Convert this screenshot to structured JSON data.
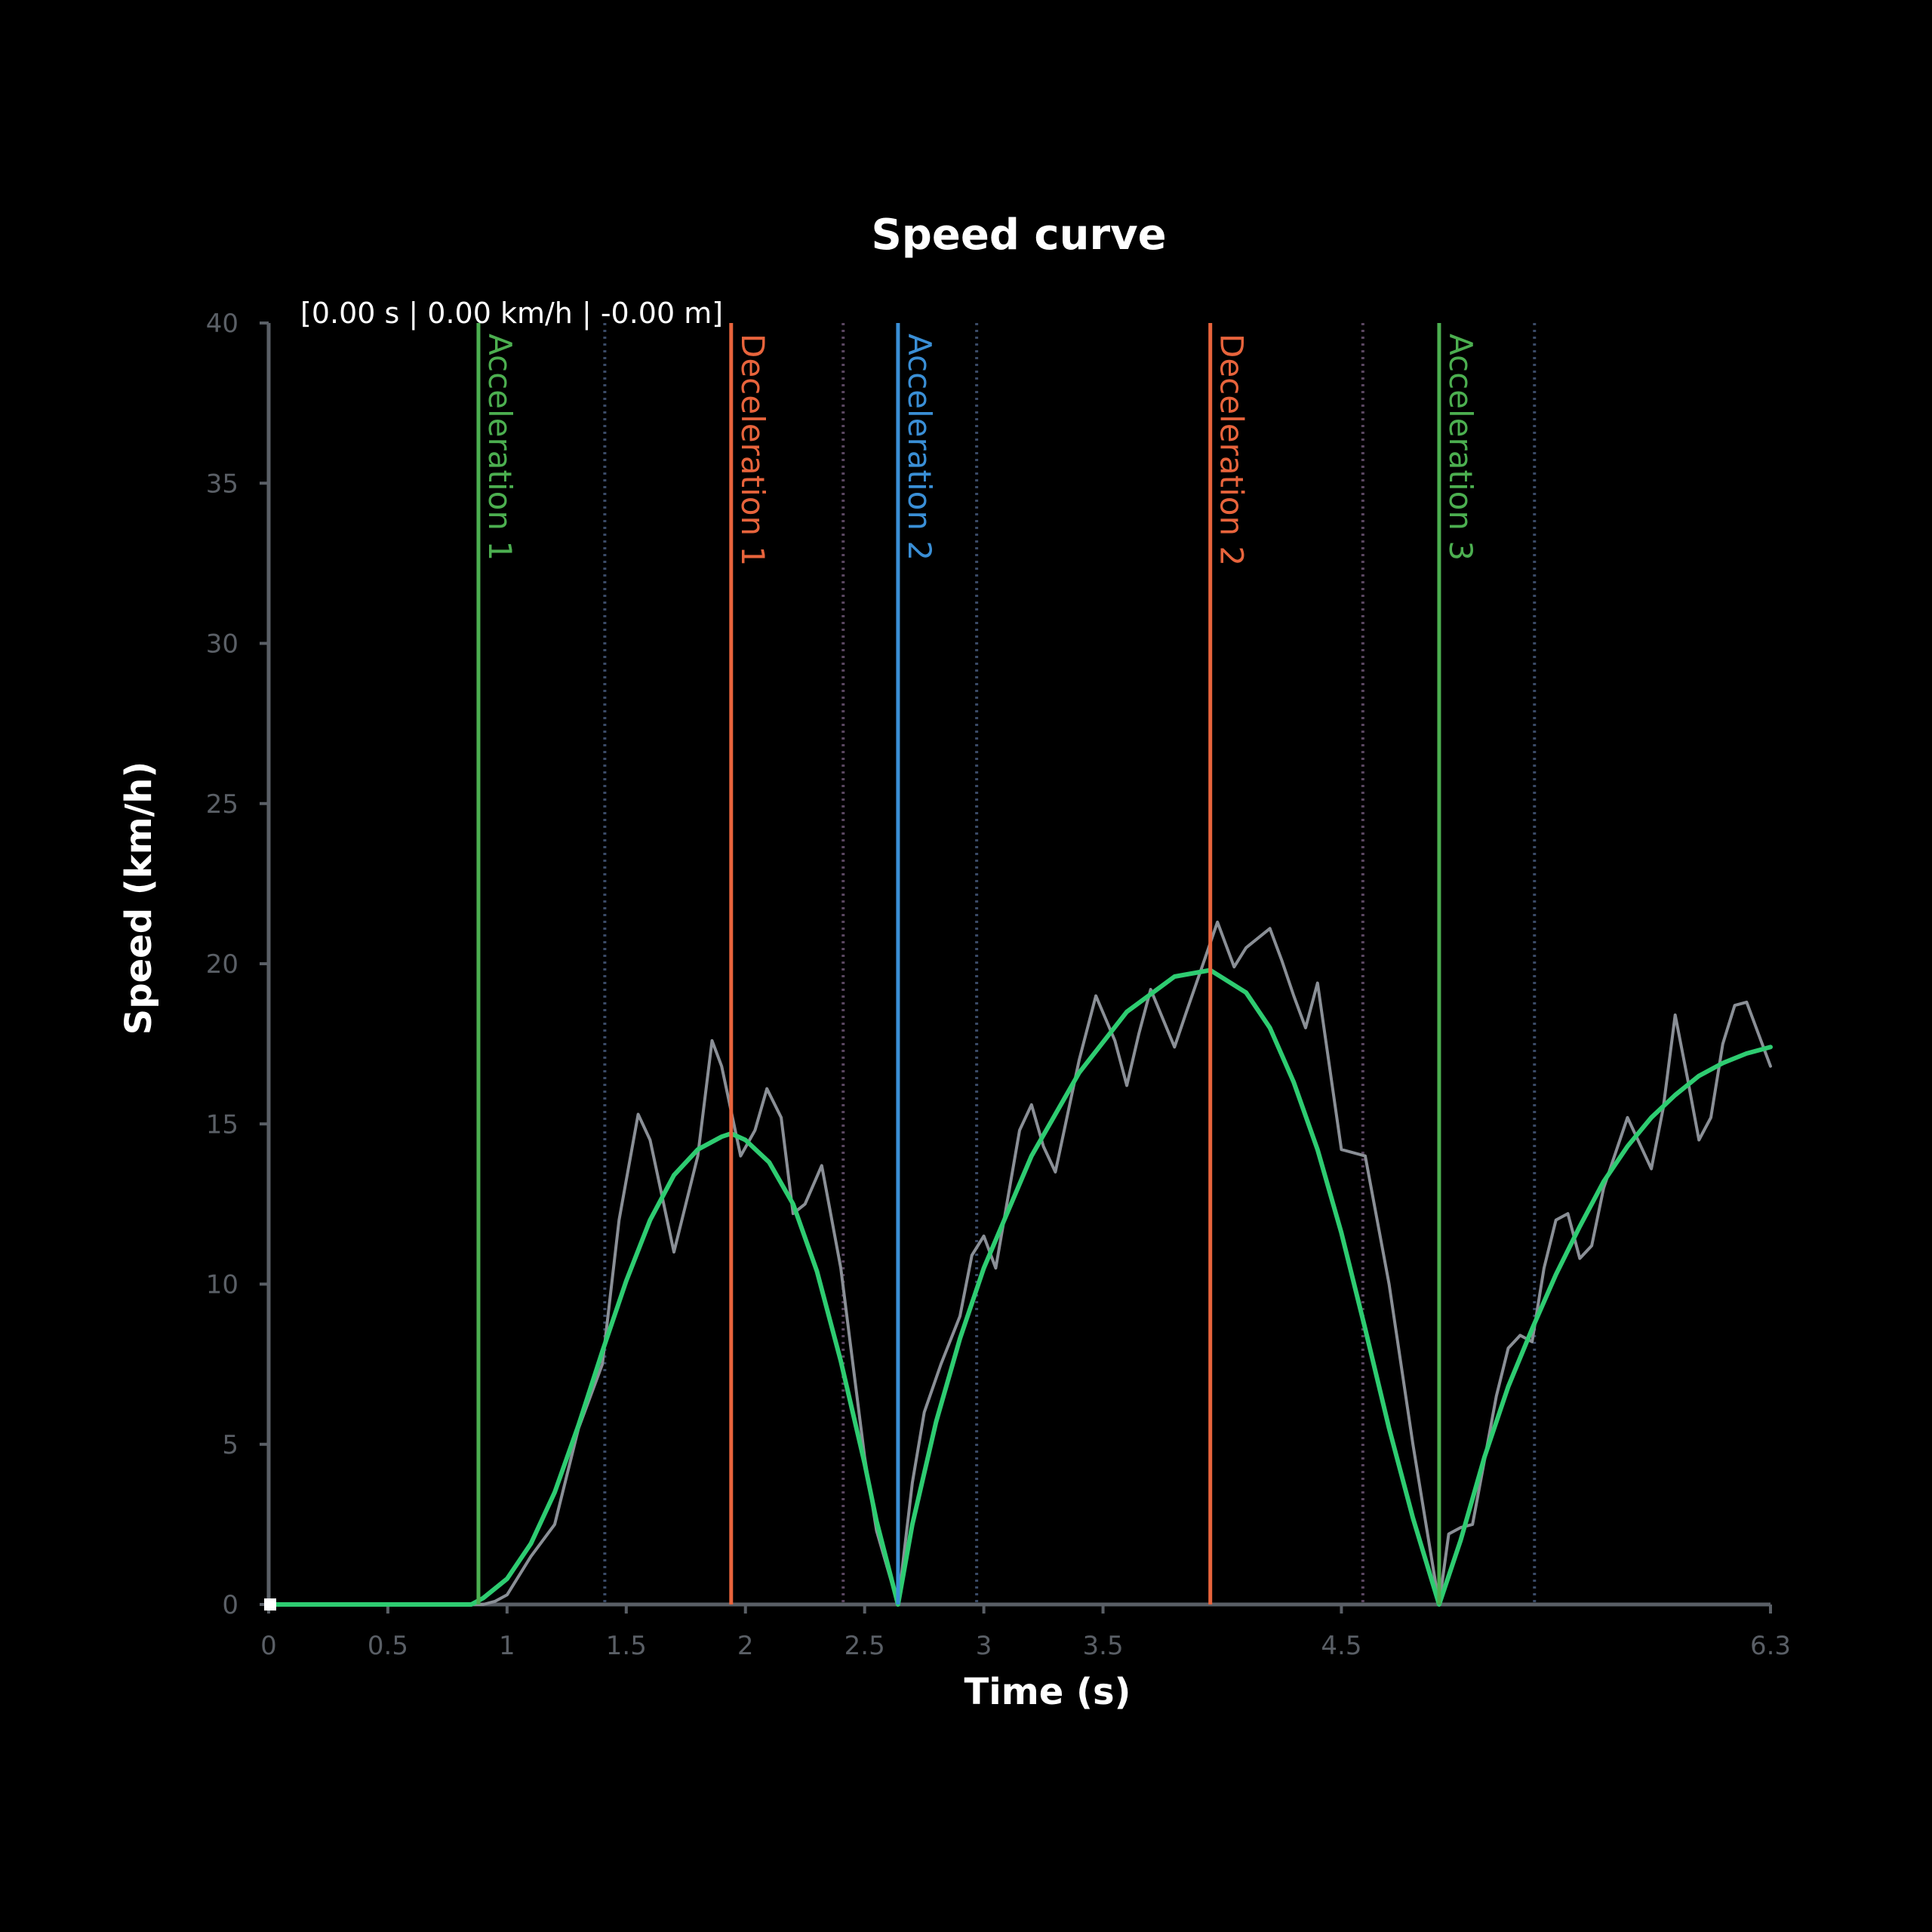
{
  "readout": "[0.00 s | 0.00 km/h | -0.00 m]",
  "chart_data": {
    "type": "line",
    "title": "Speed curve",
    "xlabel": "Time (s)",
    "ylabel": "Speed (km/h)",
    "xlim": [
      0,
      6.3
    ],
    "ylim": [
      0,
      40
    ],
    "x_ticks": [
      {
        "value": 0,
        "label": "0"
      },
      {
        "value": 0.5,
        "label": "0.5"
      },
      {
        "value": 1,
        "label": "1"
      },
      {
        "value": 1.5,
        "label": "1.5"
      },
      {
        "value": 2,
        "label": "2"
      },
      {
        "value": 2.5,
        "label": "2.5"
      },
      {
        "value": 3,
        "label": "3"
      },
      {
        "value": 3.5,
        "label": "3.5"
      },
      {
        "value": 4.5,
        "label": "4.5"
      },
      {
        "value": 6.3,
        "label": "6.3"
      }
    ],
    "y_ticks": [
      0,
      5,
      10,
      15,
      20,
      25,
      30,
      35,
      40
    ],
    "grid": false,
    "colors": {
      "smoothed": "#2ecc71",
      "raw": "#8a8f96",
      "acceleration": "#4caf50",
      "deceleration": "#e8643c",
      "acceleration_blue": "#3a8fd6",
      "dotted_line": "#3a4a66",
      "dotted_line_alt": "#5a4660",
      "axis": "#5a5f66"
    },
    "markers": [
      {
        "label": "Acceleration 1",
        "x": 0.88,
        "color": "#4caf50"
      },
      {
        "label": "Deceleration 1",
        "x": 1.94,
        "color": "#e8643c"
      },
      {
        "label": "Acceleration 2",
        "x": 2.64,
        "color": "#3a8fd6"
      },
      {
        "label": "Deceleration 2",
        "x": 3.95,
        "color": "#e8643c"
      },
      {
        "label": "Acceleration 3",
        "x": 4.91,
        "color": "#4caf50"
      }
    ],
    "dotted_lines": [
      1.41,
      2.41,
      2.97,
      4.59,
      5.31
    ],
    "series": [
      {
        "key": "smoothed",
        "x": [
          0,
          0.85,
          0.9,
          1.0,
          1.1,
          1.2,
          1.3,
          1.4,
          1.5,
          1.6,
          1.7,
          1.8,
          1.9,
          1.94,
          2.0,
          2.1,
          2.2,
          2.3,
          2.4,
          2.5,
          2.55,
          2.64,
          2.7,
          2.8,
          2.9,
          3.0,
          3.2,
          3.4,
          3.6,
          3.8,
          3.95,
          4.1,
          4.2,
          4.3,
          4.4,
          4.5,
          4.6,
          4.7,
          4.8,
          4.91,
          5.0,
          5.1,
          5.2,
          5.3,
          5.4,
          5.5,
          5.6,
          5.7,
          5.8,
          5.9,
          6.0,
          6.1,
          6.2,
          6.3
        ],
        "y": [
          0,
          0,
          0.2,
          0.8,
          1.9,
          3.5,
          5.6,
          7.9,
          10.1,
          12.0,
          13.4,
          14.2,
          14.6,
          14.7,
          14.5,
          13.8,
          12.5,
          10.4,
          7.6,
          4.4,
          2.6,
          0,
          2.5,
          5.7,
          8.3,
          10.5,
          14.0,
          16.6,
          18.5,
          19.6,
          19.8,
          19.1,
          18.0,
          16.3,
          14.2,
          11.6,
          8.6,
          5.5,
          2.7,
          0,
          2.0,
          4.6,
          6.8,
          8.6,
          10.3,
          11.8,
          13.2,
          14.3,
          15.2,
          15.9,
          16.5,
          16.9,
          17.2,
          17.4
        ]
      },
      {
        "key": "raw",
        "x": [
          0,
          0.9,
          0.95,
          1.0,
          1.1,
          1.2,
          1.3,
          1.4,
          1.47,
          1.55,
          1.6,
          1.7,
          1.8,
          1.86,
          1.9,
          1.98,
          2.04,
          2.09,
          2.15,
          2.2,
          2.25,
          2.32,
          2.4,
          2.5,
          2.55,
          2.64,
          2.7,
          2.75,
          2.82,
          2.9,
          2.95,
          3.0,
          3.05,
          3.15,
          3.2,
          3.25,
          3.3,
          3.4,
          3.47,
          3.55,
          3.6,
          3.65,
          3.7,
          3.75,
          3.8,
          3.85,
          3.92,
          3.98,
          4.05,
          4.1,
          4.2,
          4.25,
          4.3,
          4.35,
          4.4,
          4.5,
          4.6,
          4.7,
          4.8,
          4.91,
          4.95,
          5.0,
          5.05,
          5.1,
          5.15,
          5.2,
          5.25,
          5.3,
          5.35,
          5.4,
          5.45,
          5.5,
          5.55,
          5.6,
          5.7,
          5.8,
          5.85,
          5.9,
          5.95,
          6.0,
          6.05,
          6.1,
          6.15,
          6.2,
          6.25,
          6.3
        ],
        "y": [
          0,
          0,
          0.1,
          0.3,
          1.5,
          2.5,
          5.5,
          7.5,
          12.0,
          15.3,
          14.5,
          11.0,
          14.0,
          17.6,
          16.8,
          14.0,
          14.8,
          16.1,
          15.2,
          12.2,
          12.5,
          13.7,
          10.5,
          4.6,
          2.3,
          0,
          3.8,
          6.0,
          7.5,
          9.0,
          10.9,
          11.5,
          10.5,
          14.8,
          15.6,
          14.3,
          13.5,
          17.0,
          19.0,
          17.6,
          16.2,
          17.8,
          19.2,
          18.3,
          17.4,
          18.5,
          20.0,
          21.3,
          19.9,
          20.5,
          21.1,
          20.1,
          19.0,
          18.0,
          19.4,
          14.2,
          14.0,
          10.0,
          5.0,
          0,
          2.2,
          2.4,
          2.5,
          4.5,
          6.5,
          8.0,
          8.4,
          8.2,
          10.5,
          12.0,
          12.2,
          10.8,
          11.2,
          13.0,
          15.2,
          13.6,
          15.5,
          18.4,
          16.5,
          14.5,
          15.2,
          17.5,
          18.7,
          18.8,
          17.8,
          16.8
        ]
      }
    ]
  }
}
